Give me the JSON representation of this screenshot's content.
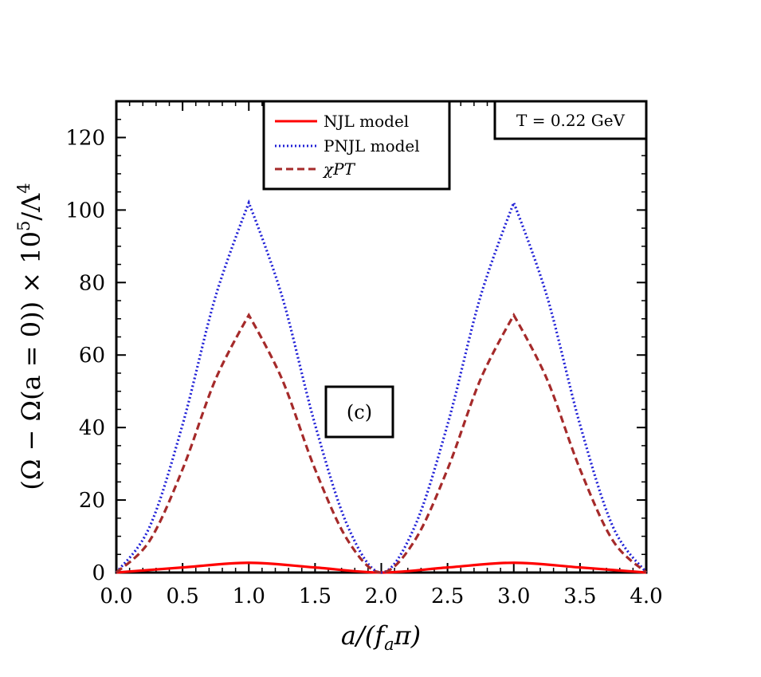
{
  "chart_data": {
    "type": "line",
    "xlabel": "a/(f_a π)",
    "ylabel": "(Ω − Ω(a = 0)) × 10^5/Λ^4",
    "xlim": [
      0.0,
      4.0
    ],
    "ylim": [
      0,
      130
    ],
    "x_ticks": [
      "0.0",
      "0.5",
      "1.0",
      "1.5",
      "2.0",
      "2.5",
      "3.0",
      "3.5",
      "4.0"
    ],
    "y_ticks": [
      "0",
      "20",
      "40",
      "60",
      "80",
      "100",
      "120"
    ],
    "grid": false,
    "legend_position": "top-center",
    "annotations": {
      "temperature": "T = 0.22 GeV",
      "panel": "(c)"
    },
    "series": [
      {
        "name": "NJL model",
        "style": "solid",
        "color": "#ff0000",
        "x": [
          0.0,
          0.5,
          1.0,
          1.5,
          2.0,
          2.5,
          3.0,
          3.5,
          4.0
        ],
        "y": [
          0.0,
          1.4,
          2.7,
          1.4,
          0.0,
          1.4,
          2.7,
          1.4,
          0.0
        ]
      },
      {
        "name": "PNJL model",
        "style": "dotted",
        "color": "#1f1fd6",
        "x": [
          0.0,
          0.25,
          0.5,
          0.75,
          1.0,
          1.25,
          1.5,
          1.75,
          2.0,
          2.25,
          2.5,
          2.75,
          3.0,
          3.25,
          3.5,
          3.75,
          4.0
        ],
        "y": [
          0.0,
          12.5,
          40.8,
          76.3,
          102.0,
          76.3,
          40.8,
          12.5,
          0.0,
          12.5,
          40.8,
          76.3,
          102.0,
          76.3,
          40.8,
          12.5,
          0.0
        ]
      },
      {
        "name": "χPT",
        "style": "dashed",
        "color": "#a52a2a",
        "x": [
          0.0,
          0.25,
          0.5,
          0.75,
          1.0,
          1.25,
          1.5,
          1.75,
          2.0,
          2.25,
          2.5,
          2.75,
          3.0,
          3.25,
          3.5,
          3.75,
          4.0
        ],
        "y": [
          0.0,
          8.7,
          28.5,
          53.4,
          71.0,
          53.4,
          28.5,
          8.7,
          0.0,
          8.7,
          28.5,
          53.4,
          71.0,
          53.4,
          28.5,
          8.7,
          0.0
        ]
      }
    ]
  }
}
